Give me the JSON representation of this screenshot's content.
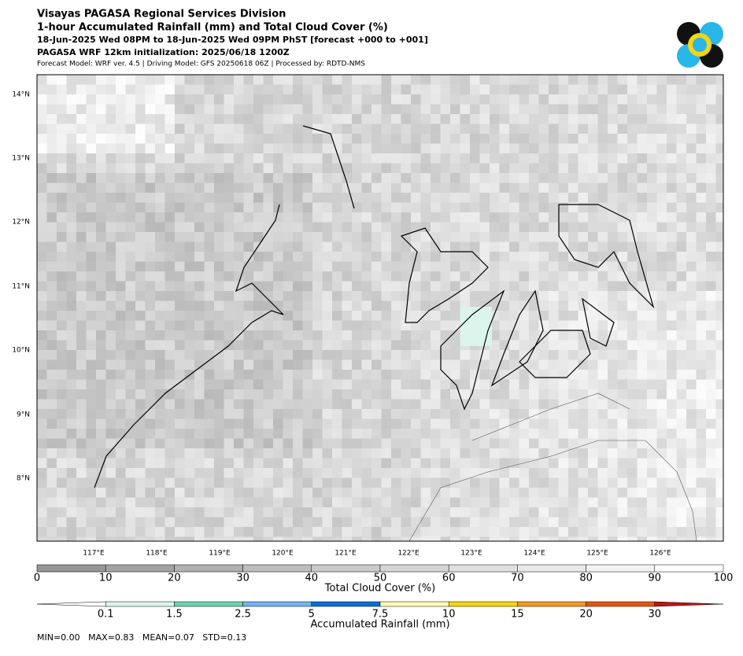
{
  "header": {
    "lines": [
      "Visayas PAGASA Regional Services Division",
      "1-hour Accumulated Rainfall (mm) and Total Cloud Cover (%)",
      "18-Jun-2025 Wed 08PM to 18-Jun-2025 Wed 09PM PhST [forecast +000 to +001]",
      "PAGASA WRF 12km initialization: 2025/06/18 1200Z",
      "Forecast Model: WRF ver. 4.5 | Driving Model: GFS 20250618 06Z | Processed by: RDTD-NMS"
    ]
  },
  "map": {
    "lat_labels": [
      "14°N",
      "13°N",
      "12°N",
      "11°N",
      "10°N",
      "9°N",
      "8°N"
    ],
    "lon_labels": [
      "117°E",
      "118°E",
      "119°E",
      "120°E",
      "121°E",
      "122°E",
      "123°E",
      "124°E",
      "125°E",
      "126°E"
    ]
  },
  "cloud_colorbar": {
    "label": "Total Cloud Cover (%)",
    "ticks": [
      0,
      10,
      20,
      30,
      40,
      50,
      60,
      70,
      80,
      90,
      100
    ],
    "colors": [
      "#969696",
      "#a3a3a3",
      "#b0b0b0",
      "#bdbdbd",
      "#c9c9c9",
      "#d4d4d4",
      "#dfdfdf",
      "#e9e9e9",
      "#f3f3f3",
      "#ffffff"
    ]
  },
  "rain_colorbar": {
    "label": "Accumulated Rainfall (mm)",
    "ticks": [
      0.1,
      1.5,
      2.5,
      5,
      7.5,
      10,
      15,
      20,
      30
    ],
    "colors": [
      "#ffffff",
      "#dcf5ec",
      "#6fd3ad",
      "#72b4ee",
      "#0a6ed6",
      "#fffbb3",
      "#f5d80f",
      "#f39a1f",
      "#e8560f",
      "#c01515"
    ]
  },
  "stats": "MIN=0.00   MAX=0.83   MEAN=0.07   STD=0.13"
}
